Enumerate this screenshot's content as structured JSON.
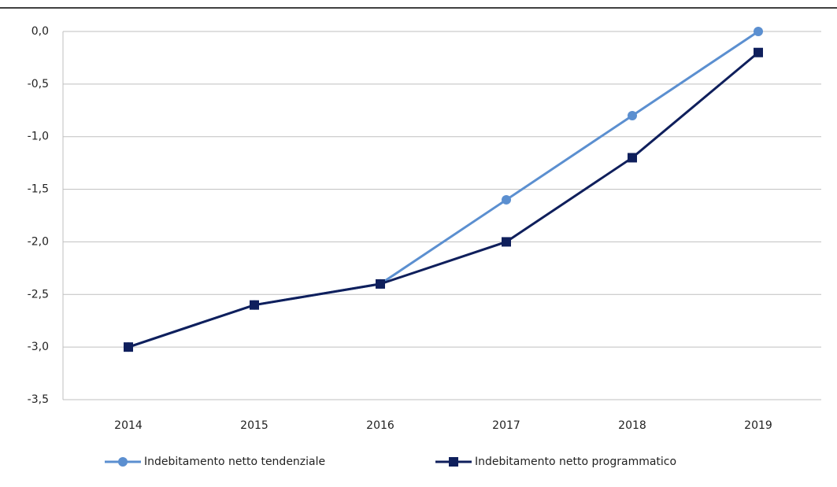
{
  "chart_data": {
    "type": "line",
    "categories": [
      "2014",
      "2015",
      "2016",
      "2017",
      "2018",
      "2019"
    ],
    "series": [
      {
        "name": "Indebitamento netto tendenziale",
        "color": "#5b8fd0",
        "marker": "circle",
        "values": [
          -3.0,
          -2.6,
          -2.4,
          -1.6,
          -0.8,
          0.0
        ]
      },
      {
        "name": "Indebitamento netto programmatico",
        "color": "#0f1f5c",
        "marker": "square",
        "values": [
          -3.0,
          -2.6,
          -2.4,
          -2.0,
          -1.2,
          -0.2
        ]
      }
    ],
    "ylim": [
      -3.5,
      0
    ],
    "yticks": [
      {
        "value": 0,
        "label": "0,0"
      },
      {
        "value": -0.5,
        "label": "-0,5"
      },
      {
        "value": -1,
        "label": "-1,0"
      },
      {
        "value": -1.5,
        "label": "-1,5"
      },
      {
        "value": -2,
        "label": "-2,0"
      },
      {
        "value": -2.5,
        "label": "-2,5"
      },
      {
        "value": -3,
        "label": "-3,0"
      },
      {
        "value": -3.5,
        "label": "-3,5"
      }
    ],
    "grid": true,
    "legend": "bottom"
  }
}
